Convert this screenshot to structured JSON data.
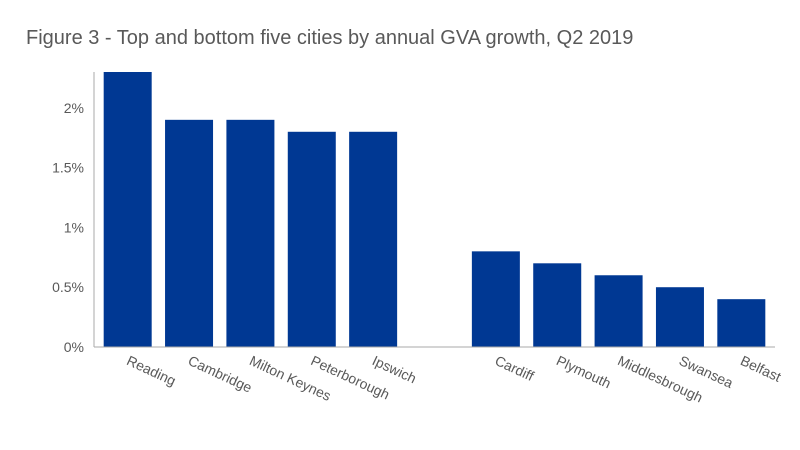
{
  "chart_data": {
    "type": "bar",
    "title": "Figure 3 - Top and bottom five cities by annual GVA growth, Q2 2019",
    "categories": [
      "Reading",
      "Cambridge",
      "Milton Keynes",
      "Peterborough",
      "Ipswich",
      "",
      "Cardiff",
      "Plymouth",
      "Middlesbrough",
      "Swansea",
      "Belfast"
    ],
    "values": [
      2.3,
      1.9,
      1.9,
      1.8,
      1.8,
      null,
      0.8,
      0.7,
      0.6,
      0.5,
      0.4
    ],
    "y_ticks": [
      "0%",
      "0.5%",
      "1%",
      "1.5%",
      "2%"
    ],
    "y_tick_values": [
      0,
      0.5,
      1,
      1.5,
      2
    ],
    "ylim": [
      0,
      2.3
    ],
    "xlabel": "",
    "ylabel": "",
    "bar_color": "#003893",
    "axis_color": "#aaaaaa",
    "grid": false,
    "legend": "none"
  }
}
